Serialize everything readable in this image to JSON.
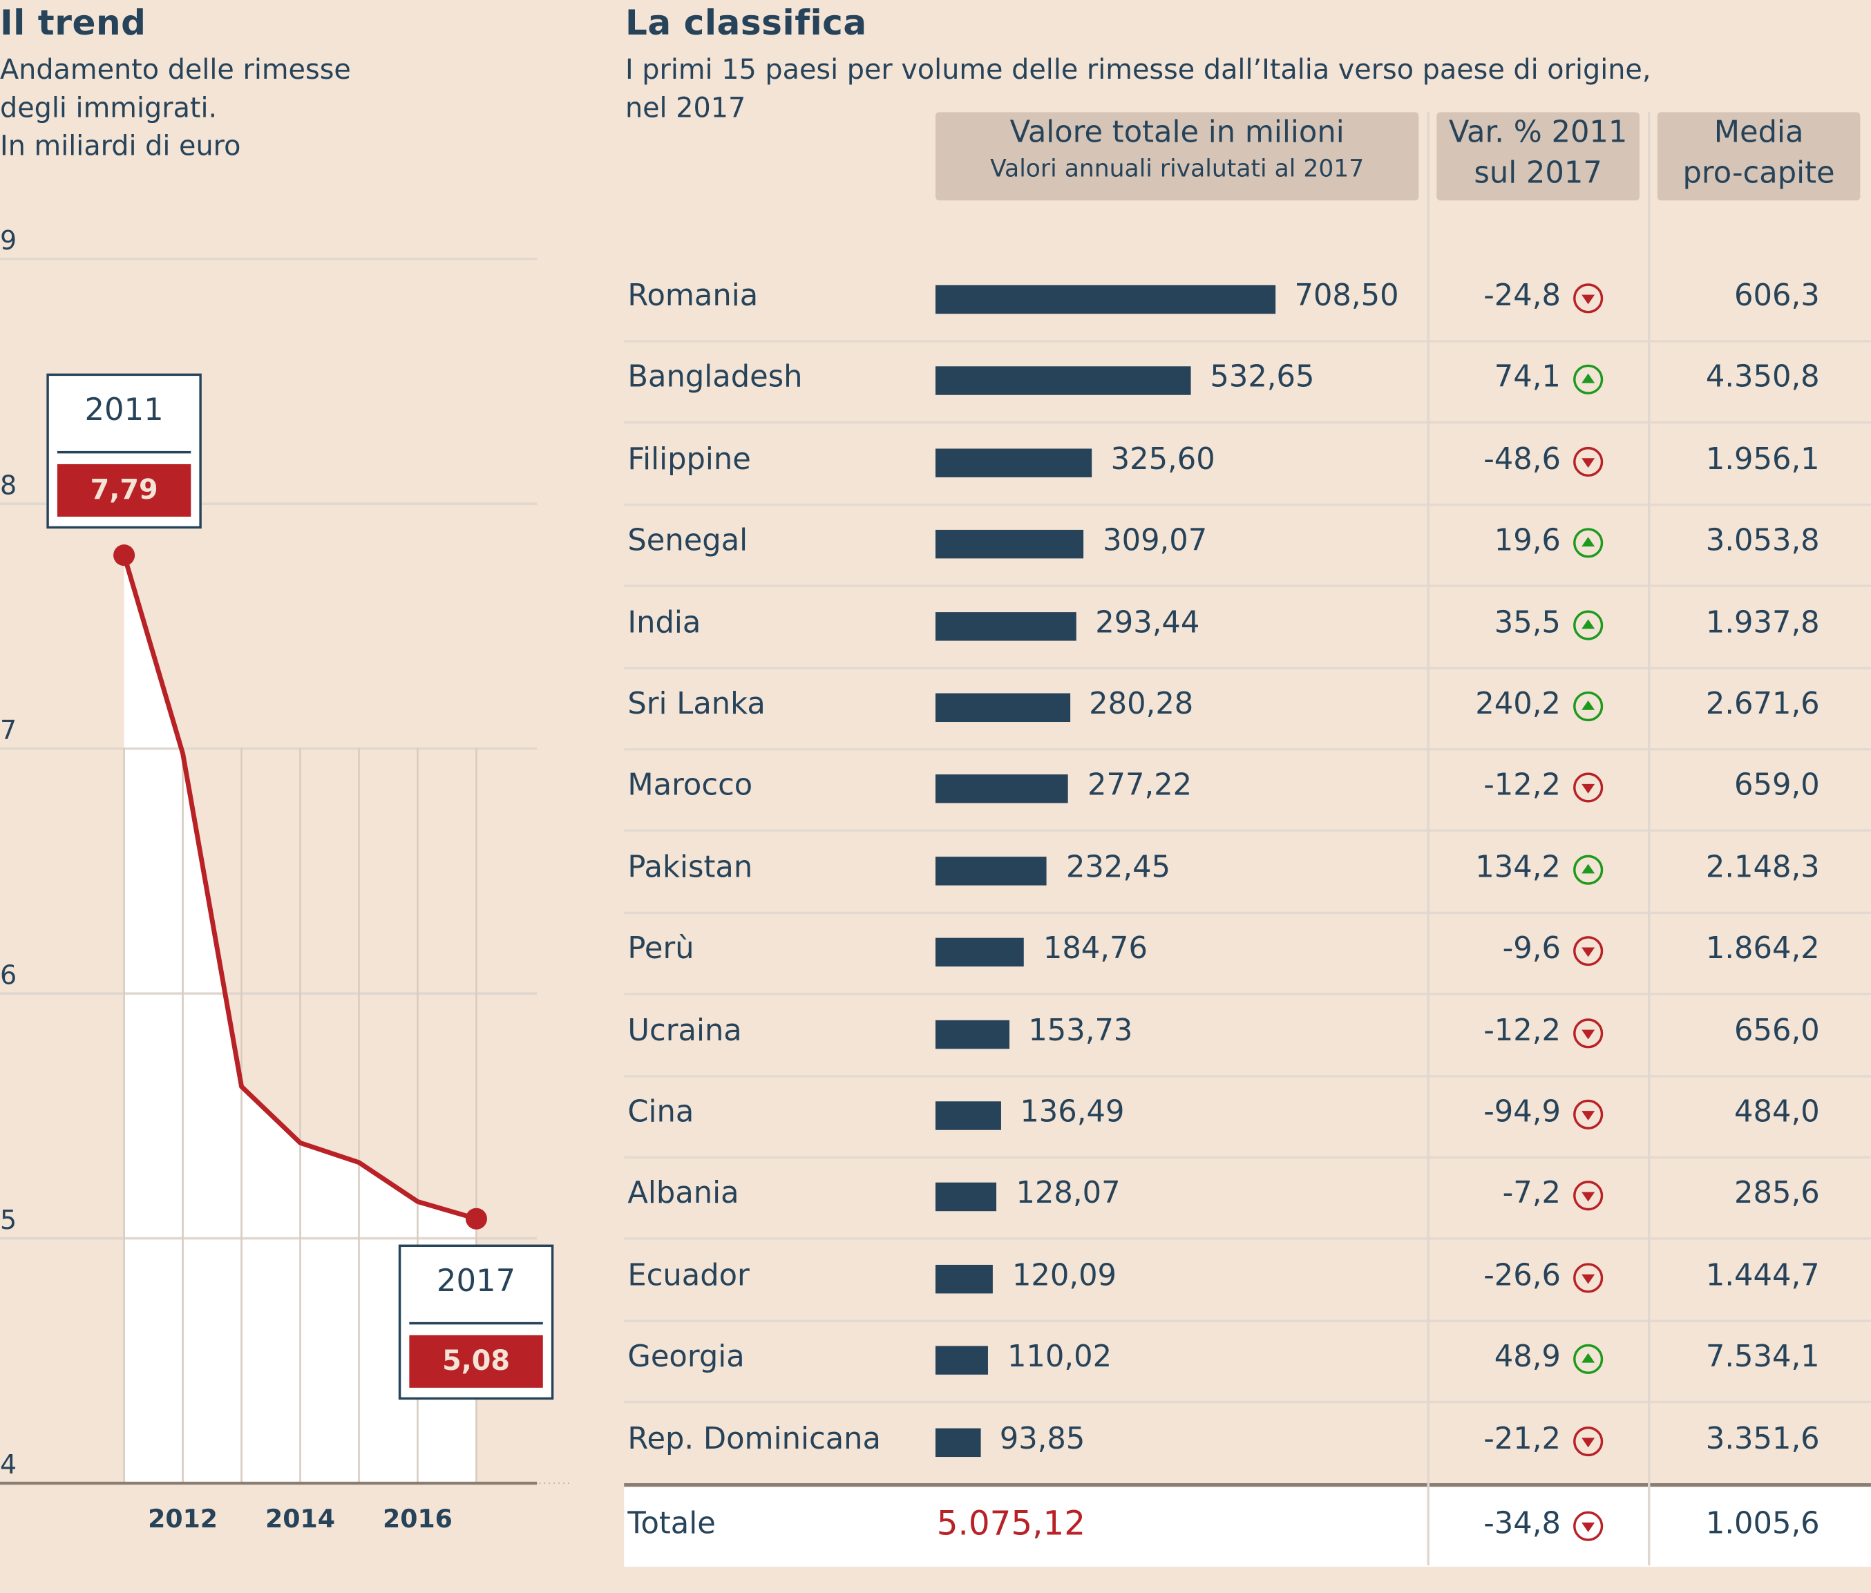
{
  "left": {
    "title": "Il trend",
    "subtitle_lines": [
      "Andamento delle rimesse",
      "degli immigrati.",
      "In miliardi di euro"
    ]
  },
  "right": {
    "title": "La classifica",
    "subtitle_lines": [
      "I primi 15 paesi per volume delle rimesse dall’Italia verso paese di origine,",
      "nel 2017"
    ],
    "headers": {
      "col1_title": "Valore totale in milioni",
      "col1_sub": "Valori annuali rivalutati al 2017",
      "col2_line1": "Var. % 2011",
      "col2_line2": "sul 2017",
      "col3_line1": "Media",
      "col3_line2": "pro-capite"
    },
    "total": {
      "label": "Totale",
      "value": "5.075,12",
      "var": "-34,8",
      "trend": "down",
      "media": "1.005,6"
    }
  },
  "colors": {
    "up": "#1d9a1d",
    "down": "#b82126",
    "bar": "#26435a",
    "line": "#b82126"
  },
  "chart_data": [
    {
      "type": "line",
      "title": "Il trend",
      "ylabel": "In miliardi di euro",
      "x": [
        2011,
        2012,
        2013,
        2014,
        2015,
        2016,
        2017
      ],
      "values": [
        7.79,
        6.98,
        5.62,
        5.39,
        5.31,
        5.15,
        5.08
      ],
      "ylim": [
        4,
        9
      ],
      "yticks": [
        "4",
        "5",
        "6",
        "7",
        "8",
        "9"
      ],
      "xticks": [
        "2012",
        "2014",
        "2016"
      ],
      "annotations": [
        {
          "year": "2011",
          "value": "7,79"
        },
        {
          "year": "2017",
          "value": "5,08"
        }
      ],
      "grid": true
    },
    {
      "type": "bar",
      "title": "La classifica",
      "categories": [
        "Romania",
        "Bangladesh",
        "Filippine",
        "Senegal",
        "India",
        "Sri Lanka",
        "Marocco",
        "Pakistan",
        "Perù",
        "Ucraina",
        "Cina",
        "Albania",
        "Ecuador",
        "Georgia",
        "Rep. Dominicana"
      ],
      "values": [
        708.5,
        532.65,
        325.6,
        309.07,
        293.44,
        280.28,
        277.22,
        232.45,
        184.76,
        153.73,
        136.49,
        128.07,
        120.09,
        110.02,
        93.85
      ],
      "rows": [
        {
          "name": "Romania",
          "value": "708,50",
          "var": "-24,8",
          "trend": "down",
          "media": "606,3"
        },
        {
          "name": "Bangladesh",
          "value": "532,65",
          "var": "74,1",
          "trend": "up",
          "media": "4.350,8"
        },
        {
          "name": "Filippine",
          "value": "325,60",
          "var": "-48,6",
          "trend": "down",
          "media": "1.956,1"
        },
        {
          "name": "Senegal",
          "value": "309,07",
          "var": "19,6",
          "trend": "up",
          "media": "3.053,8"
        },
        {
          "name": "India",
          "value": "293,44",
          "var": "35,5",
          "trend": "up",
          "media": "1.937,8"
        },
        {
          "name": "Sri Lanka",
          "value": "280,28",
          "var": "240,2",
          "trend": "up",
          "media": "2.671,6"
        },
        {
          "name": "Marocco",
          "value": "277,22",
          "var": "-12,2",
          "trend": "down",
          "media": "659,0"
        },
        {
          "name": "Pakistan",
          "value": "232,45",
          "var": "134,2",
          "trend": "up",
          "media": "2.148,3"
        },
        {
          "name": "Perù",
          "value": "184,76",
          "var": "-9,6",
          "trend": "down",
          "media": "1.864,2"
        },
        {
          "name": "Ucraina",
          "value": "153,73",
          "var": "-12,2",
          "trend": "down",
          "media": "656,0"
        },
        {
          "name": "Cina",
          "value": "136,49",
          "var": "-94,9",
          "trend": "down",
          "media": "484,0"
        },
        {
          "name": "Albania",
          "value": "128,07",
          "var": "-7,2",
          "trend": "down",
          "media": "285,6"
        },
        {
          "name": "Ecuador",
          "value": "120,09",
          "var": "-26,6",
          "trend": "down",
          "media": "1.444,7"
        },
        {
          "name": "Georgia",
          "value": "110,02",
          "var": "48,9",
          "trend": "up",
          "media": "7.534,1"
        },
        {
          "name": "Rep. Dominicana",
          "value": "93,85",
          "var": "-21,2",
          "trend": "down",
          "media": "3.351,6"
        }
      ]
    }
  ]
}
